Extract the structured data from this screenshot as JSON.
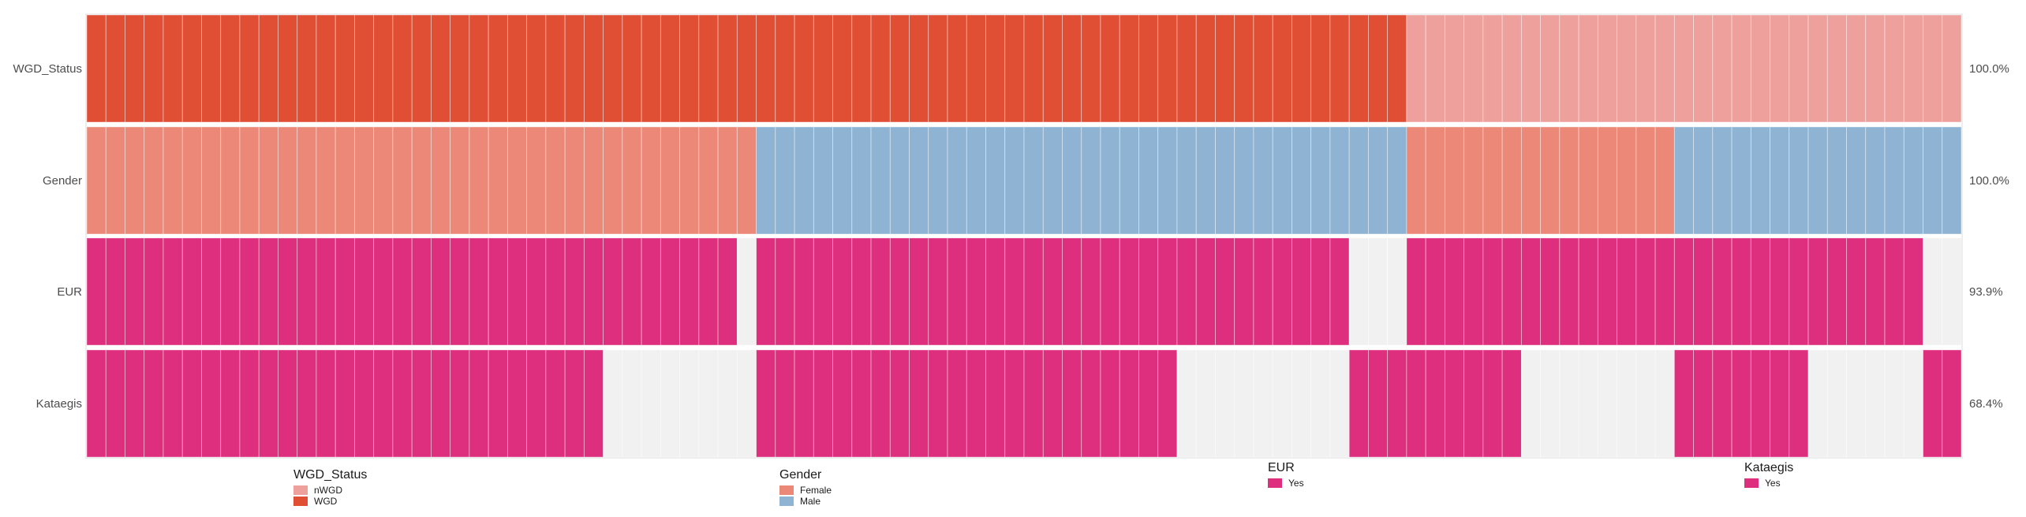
{
  "chart_data": {
    "type": "heatmap",
    "n_samples": 98,
    "colors": {
      "WGD": "#e04e33",
      "nWGD": "#eea09c",
      "Female": "#ec8878",
      "Male": "#8eb3d3",
      "Yes": "#de2e7e",
      "empty": "#f1f1f1"
    },
    "tracks": [
      {
        "name": "WGD_Status",
        "percent": "100.0%",
        "segments": [
          {
            "value": "WGD",
            "count": 69
          },
          {
            "value": "nWGD",
            "count": 29
          }
        ]
      },
      {
        "name": "Gender",
        "percent": "100.0%",
        "segments": [
          {
            "value": "Female",
            "count": 35
          },
          {
            "value": "Male",
            "count": 34
          },
          {
            "value": "Female",
            "count": 14
          },
          {
            "value": "Male",
            "count": 15
          }
        ]
      },
      {
        "name": "EUR",
        "percent": "93.9%",
        "segments": [
          {
            "value": "Yes",
            "count": 34
          },
          {
            "value": "empty",
            "count": 1
          },
          {
            "value": "Yes",
            "count": 31
          },
          {
            "value": "empty",
            "count": 3
          },
          {
            "value": "Yes",
            "count": 27
          },
          {
            "value": "empty",
            "count": 2
          }
        ]
      },
      {
        "name": "Kataegis",
        "percent": "68.4%",
        "segments": [
          {
            "value": "Yes",
            "count": 27
          },
          {
            "value": "empty",
            "count": 8
          },
          {
            "value": "Yes",
            "count": 22
          },
          {
            "value": "empty",
            "count": 9
          },
          {
            "value": "Yes",
            "count": 9
          },
          {
            "value": "empty",
            "count": 8
          },
          {
            "value": "Yes",
            "count": 7
          },
          {
            "value": "empty",
            "count": 6
          },
          {
            "value": "Yes",
            "count": 2
          }
        ]
      }
    ],
    "legends": [
      {
        "title": "WGD_Status",
        "items": [
          {
            "label": "nWGD",
            "color": "#eea09c"
          },
          {
            "label": "WGD",
            "color": "#e04e33"
          }
        ]
      },
      {
        "title": "Gender",
        "items": [
          {
            "label": "Female",
            "color": "#ec8878"
          },
          {
            "label": "Male",
            "color": "#8eb3d3"
          }
        ]
      },
      {
        "title": "EUR",
        "items": [
          {
            "label": "Yes",
            "color": "#de2e7e"
          }
        ]
      },
      {
        "title": "Kataegis",
        "items": [
          {
            "label": "Yes",
            "color": "#de2e7e"
          }
        ]
      }
    ]
  }
}
